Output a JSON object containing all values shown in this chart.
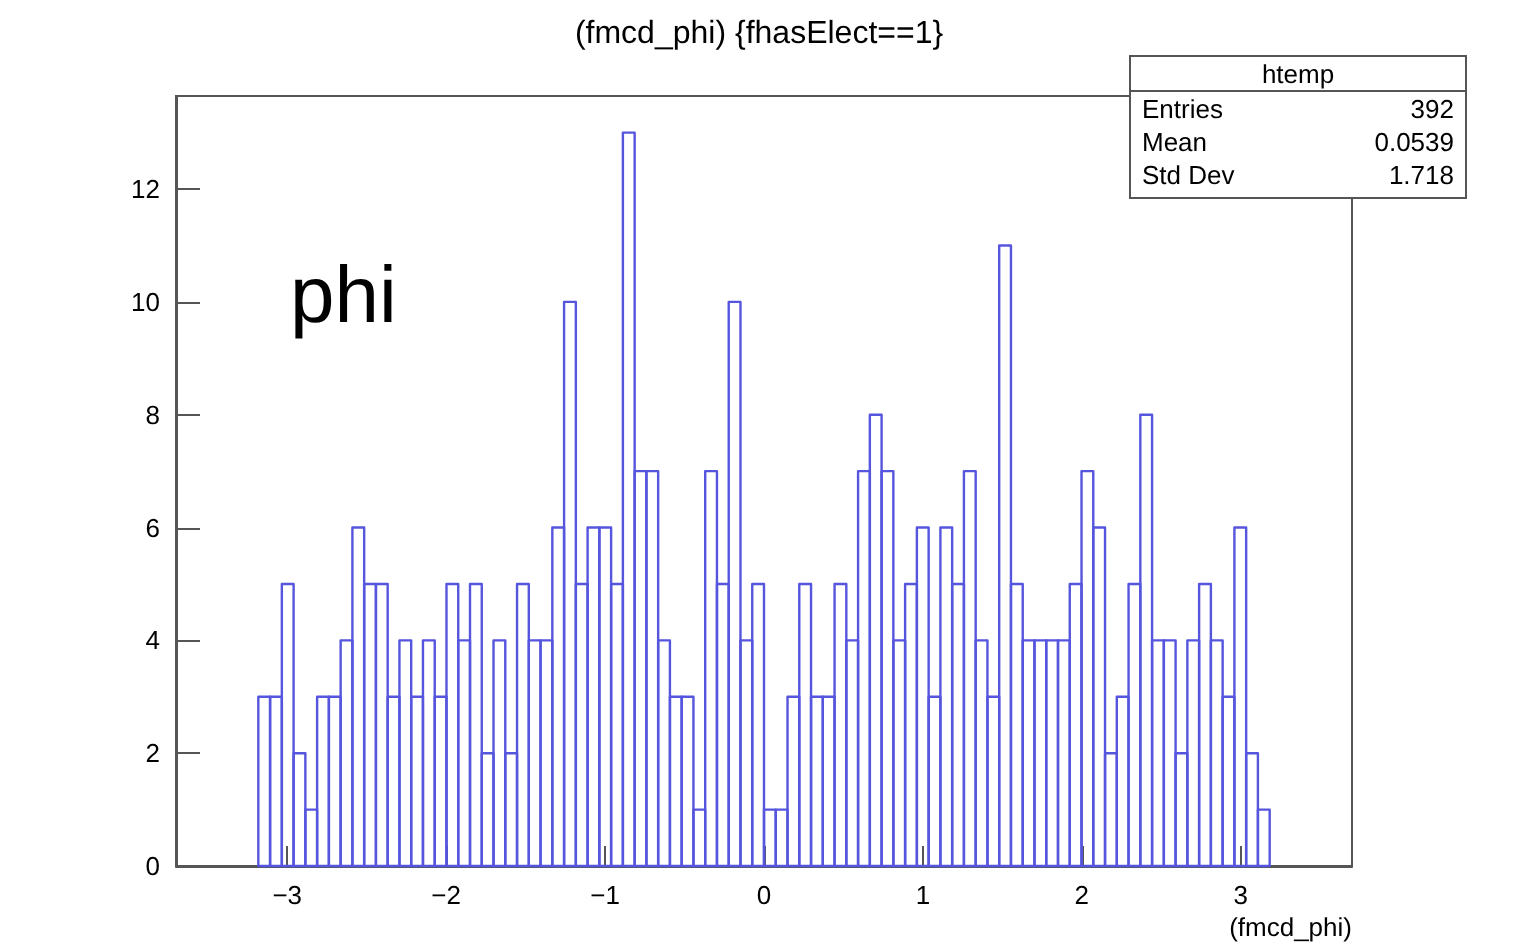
{
  "chart_data": {
    "type": "histogram",
    "title": "(fmcd_phi) {fhasElect==1}",
    "xlabel": "(fmcd_phi)",
    "annotations": [
      "phi",
      "htemp",
      "Entries",
      "392",
      "Mean",
      "0.0539",
      "Std Dev",
      "1.718"
    ],
    "bins": [
      -3.182,
      -3.108,
      -3.034,
      -2.96,
      -2.886,
      -2.812,
      -2.738,
      -2.664,
      -2.59,
      -2.516,
      -2.442,
      -2.368,
      -2.294,
      -2.22,
      -2.146,
      -2.072,
      -1.998,
      -1.924,
      -1.85,
      -1.776,
      -1.702,
      -1.628,
      -1.554,
      -1.48,
      -1.406,
      -1.332,
      -1.258,
      -1.184,
      -1.11,
      -1.036,
      -0.962,
      -0.888,
      -0.814,
      -0.74,
      -0.666,
      -0.592,
      -0.518,
      -0.444,
      -0.37,
      -0.296,
      -0.222,
      -0.148,
      -0.074,
      0,
      0.074,
      0.148,
      0.222,
      0.296,
      0.37,
      0.444,
      0.518,
      0.592,
      0.666,
      0.74,
      0.814,
      0.888,
      0.962,
      1.036,
      1.11,
      1.184,
      1.258,
      1.332,
      1.406,
      1.48,
      1.554,
      1.628,
      1.702,
      1.776,
      1.85,
      1.924,
      1.998,
      2.072,
      2.146,
      2.22,
      2.294,
      2.368,
      2.442,
      2.516,
      2.59,
      2.664,
      2.738,
      2.812,
      2.886,
      2.96,
      3.034,
      3.108,
      3.182
    ],
    "values": [
      3,
      3,
      5,
      2,
      1,
      3,
      3,
      4,
      6,
      5,
      5,
      3,
      4,
      3,
      4,
      3,
      5,
      4,
      5,
      2,
      4,
      2,
      5,
      4,
      4,
      6,
      10,
      5,
      6,
      6,
      5,
      13,
      7,
      7,
      4,
      3,
      3,
      1,
      7,
      5,
      10,
      4,
      5,
      1,
      1,
      3,
      5,
      3,
      3,
      5,
      4,
      7,
      8,
      7,
      4,
      5,
      6,
      3,
      6,
      5,
      7,
      4,
      3,
      11,
      5,
      4,
      4,
      4,
      4,
      5,
      7,
      6,
      2,
      3,
      5,
      8,
      4,
      4,
      2,
      4,
      5,
      4,
      3,
      6,
      2,
      1
    ],
    "color": "#5555dd",
    "xlim": [
      -3.7,
      3.7
    ],
    "xticks": [
      -3,
      -2,
      -1,
      0,
      1,
      2,
      3
    ],
    "ylim": [
      0,
      13.65
    ],
    "yticks": [
      0,
      2,
      4,
      6,
      8,
      10,
      12
    ]
  }
}
